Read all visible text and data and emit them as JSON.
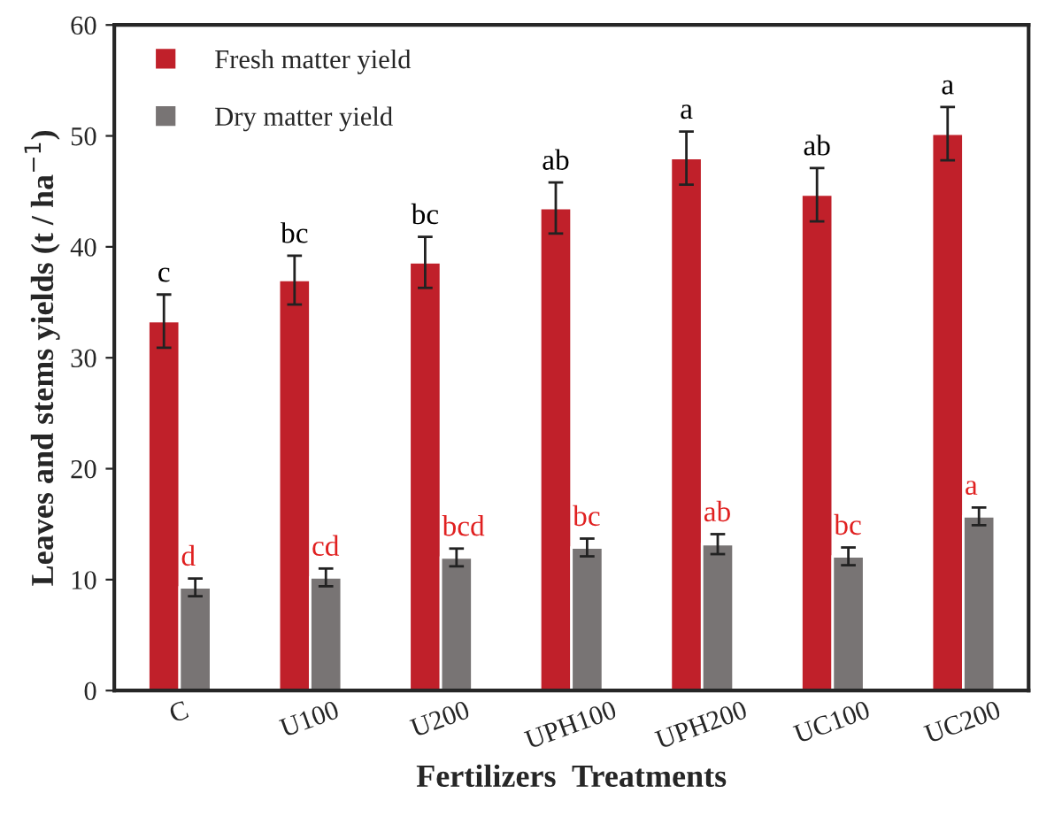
{
  "chart_data": {
    "type": "bar",
    "xlabel": "Fertilizers  Treatments",
    "ylabel": "Leaves and stems yields (t / ha$^{−1}$)",
    "categories": [
      "C",
      "U100",
      "U200",
      "UPH100",
      "UPH200",
      "UC100",
      "UC200"
    ],
    "series": [
      {
        "name": "Fresh matter yield",
        "color": "#c0202a",
        "values": [
          33.3,
          37.0,
          38.6,
          43.5,
          48.0,
          44.7,
          50.2
        ],
        "errors": [
          2.4,
          2.2,
          2.3,
          2.3,
          2.4,
          2.4,
          2.4
        ],
        "value_labels": [
          "c",
          "bc",
          "bc",
          "ab",
          "a",
          "ab",
          "a"
        ]
      },
      {
        "name": "Dry matter yield",
        "color": "#787474",
        "values": [
          9.3,
          10.2,
          12.0,
          12.9,
          13.2,
          12.1,
          15.7
        ],
        "errors": [
          0.8,
          0.8,
          0.8,
          0.8,
          0.9,
          0.8,
          0.8
        ],
        "value_labels": [
          "d",
          "cd",
          "bcd",
          "bc",
          "ab",
          "bc",
          "a"
        ]
      }
    ],
    "ylim": [
      0,
      60
    ],
    "yticks": [
      0,
      10,
      20,
      30,
      40,
      50,
      60
    ],
    "grid": false,
    "legend": "top left"
  }
}
